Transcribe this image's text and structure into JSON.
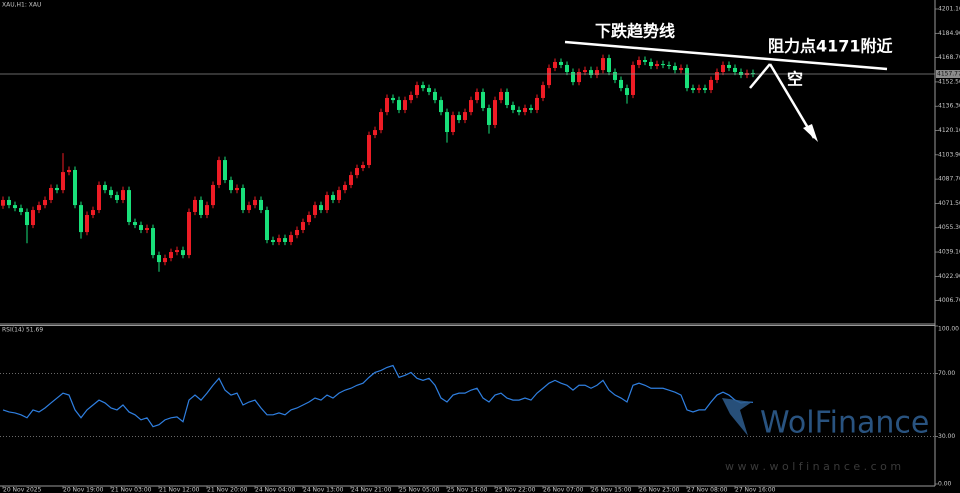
{
  "chart_data": [
    {
      "type": "candlestick",
      "title": "XAU,H1: XAU",
      "categories": [
        "20 Nov 2025",
        null,
        null,
        null,
        null,
        null,
        null,
        null,
        null,
        null,
        "20 Nov 19:00",
        null,
        null,
        null,
        null,
        null,
        null,
        null,
        "21 Nov 03:00",
        null,
        null,
        null,
        null,
        null,
        null,
        null,
        "21 Nov 12:00",
        null,
        null,
        null,
        null,
        null,
        null,
        null,
        "21 Nov 20:00",
        null,
        null,
        null,
        null,
        null,
        null,
        null,
        "24 Nov 04:00",
        null,
        null,
        null,
        null,
        null,
        null,
        null,
        "24 Nov 13:00",
        null,
        null,
        null,
        null,
        null,
        null,
        null,
        "24 Nov 21:00",
        null,
        null,
        null,
        null,
        null,
        null,
        null,
        "25 Nov 05:00",
        null,
        null,
        null,
        null,
        null,
        null,
        null,
        "25 Nov 14:00",
        null,
        null,
        null,
        null,
        null,
        null,
        null,
        "25 Nov 22:00",
        null,
        null,
        null,
        null,
        null,
        null,
        null,
        "26 Nov 07:00",
        null,
        null,
        null,
        null,
        null,
        null,
        null,
        "26 Nov 15:00",
        null,
        null,
        null,
        null,
        null,
        null,
        null,
        "26 Nov 23:00",
        null,
        null,
        null,
        null,
        null,
        null,
        null,
        "27 Nov 08:00",
        null,
        null,
        null,
        null,
        null,
        null,
        null,
        "27 Nov 16:00",
        null,
        null,
        null
      ],
      "open": [
        4070.0,
        4073.8,
        4070.4,
        4068.4,
        4065.8,
        4057.1,
        4067.1,
        4070.4,
        4073.8,
        4081.8,
        4080.4,
        4092.4,
        4093.8,
        4070.4,
        4052.4,
        4063.8,
        4067.1,
        4083.8,
        4080.4,
        4077.1,
        4073.8,
        4080.4,
        4059.1,
        4057.1,
        4053.8,
        4055.1,
        4037.1,
        4032.4,
        4035.1,
        4039.1,
        4040.4,
        4037.1,
        4065.8,
        4073.8,
        4063.8,
        4070.4,
        4083.8,
        4100.4,
        4087.1,
        4080.4,
        4081.8,
        4067.1,
        4070.4,
        4073.8,
        4067.1,
        4047.1,
        4045.8,
        4048.4,
        4045.8,
        4050.4,
        4053.8,
        4059.1,
        4063.8,
        4070.4,
        4067.1,
        4077.1,
        4073.8,
        4080.4,
        4083.8,
        4090.4,
        4095.1,
        4097.1,
        4117.1,
        4120.4,
        4132.4,
        4141.8,
        4140.4,
        4133.8,
        4140.4,
        4143.8,
        4150.4,
        4148.4,
        4145.8,
        4140.4,
        4132.4,
        4119.1,
        4130.4,
        4127.1,
        4132.4,
        4140.4,
        4145.8,
        4135.1,
        4123.8,
        4140.4,
        4145.8,
        4137.1,
        4133.8,
        4132.4,
        4135.1,
        4133.8,
        4141.8,
        4150.4,
        4161.8,
        4165.8,
        4163.8,
        4159.1,
        4152.4,
        4159.1,
        4160.4,
        4157.1,
        4160.4,
        4168.4,
        4159.1,
        4153.8,
        4148.4,
        4143.8,
        4163.8,
        4167.1,
        4165.8,
        4163.1,
        4164.4,
        4163.8,
        4163.1,
        4160.4,
        4161.8,
        4148.4,
        4147.1,
        4148.4,
        4147.1,
        4153.8,
        4159.1,
        4163.8,
        4161.8,
        4159.1,
        4157.1,
        4158.4
      ],
      "high": [
        4076.1,
        4076.1,
        4072.7,
        4070.7,
        4068.1,
        4069.4,
        4072.7,
        4076.1,
        4084.1,
        4084.1,
        4105.0,
        4096.1,
        4096.1,
        4072.7,
        4066.1,
        4069.4,
        4086.1,
        4086.1,
        4082.7,
        4079.4,
        4082.7,
        4082.7,
        4061.4,
        4059.4,
        4057.4,
        4057.4,
        4039.4,
        4037.4,
        4041.4,
        4042.7,
        4042.7,
        4068.1,
        4076.1,
        4076.1,
        4072.7,
        4086.1,
        4102.7,
        4102.7,
        4089.4,
        4084.1,
        4084.1,
        4072.7,
        4076.1,
        4076.1,
        4069.4,
        4049.4,
        4050.7,
        4050.7,
        4052.7,
        4056.1,
        4061.4,
        4066.1,
        4072.7,
        4072.7,
        4079.4,
        4079.4,
        4082.7,
        4086.1,
        4092.7,
        4097.4,
        4099.4,
        4119.4,
        4122.7,
        4134.7,
        4144.1,
        4144.1,
        4142.7,
        4142.7,
        4146.1,
        4152.7,
        4152.7,
        4150.7,
        4148.1,
        4142.7,
        4134.7,
        4132.7,
        4132.7,
        4134.7,
        4142.7,
        4148.1,
        4148.1,
        4137.4,
        4142.7,
        4148.1,
        4148.1,
        4139.4,
        4136.1,
        4137.4,
        4137.4,
        4144.1,
        4152.7,
        4164.1,
        4168.1,
        4168.1,
        4166.1,
        4161.4,
        4161.4,
        4162.7,
        4162.7,
        4162.7,
        4170.7,
        4170.7,
        4161.4,
        4156.1,
        4150.7,
        4166.1,
        4169.4,
        4169.4,
        4168.1,
        4166.7,
        4166.7,
        4166.1,
        4165.4,
        4164.1,
        4164.1,
        4150.7,
        4150.7,
        4150.7,
        4156.1,
        4161.4,
        4166.1,
        4166.1,
        4164.1,
        4161.4,
        4160.7,
        4160.7
      ],
      "low": [
        4067.9,
        4068.3,
        4066.3,
        4063.7,
        4045.0,
        4055.0,
        4065.0,
        4068.3,
        4071.7,
        4078.3,
        4078.3,
        4090.3,
        4068.3,
        4048.0,
        4050.3,
        4061.7,
        4065.0,
        4078.3,
        4075.0,
        4071.7,
        4071.7,
        4057.0,
        4055.0,
        4051.7,
        4051.7,
        4035.0,
        4026.0,
        4030.3,
        4033.0,
        4037.0,
        4035.0,
        4035.0,
        4063.7,
        4061.7,
        4061.7,
        4068.3,
        4081.7,
        4085.0,
        4078.3,
        4078.3,
        4065.0,
        4065.0,
        4068.3,
        4065.0,
        4045.0,
        4043.7,
        4043.7,
        4043.7,
        4043.7,
        4048.3,
        4051.7,
        4057.0,
        4061.7,
        4065.0,
        4065.0,
        4071.7,
        4071.7,
        4078.3,
        4081.7,
        4088.3,
        4093.0,
        4095.0,
        4115.0,
        4118.3,
        4130.3,
        4138.3,
        4131.7,
        4131.7,
        4138.3,
        4141.7,
        4146.3,
        4143.7,
        4138.3,
        4130.3,
        4112.0,
        4117.0,
        4125.0,
        4125.0,
        4130.3,
        4138.3,
        4133.0,
        4118.0,
        4121.7,
        4138.3,
        4135.0,
        4131.7,
        4130.3,
        4130.3,
        4131.7,
        4131.7,
        4139.7,
        4148.3,
        4159.7,
        4161.7,
        4157.0,
        4150.3,
        4150.3,
        4157.0,
        4155.0,
        4155.0,
        4158.3,
        4157.0,
        4151.7,
        4146.3,
        4138.0,
        4141.7,
        4161.7,
        4163.7,
        4161.0,
        4161.0,
        4161.7,
        4161.0,
        4158.3,
        4158.3,
        4146.3,
        4145.0,
        4145.0,
        4145.0,
        4145.0,
        4151.7,
        4157.0,
        4159.7,
        4157.0,
        4155.0,
        4155.0,
        4155.7
      ],
      "close": [
        4073.8,
        4070.4,
        4068.4,
        4065.8,
        4057.1,
        4067.1,
        4070.4,
        4073.8,
        4081.8,
        4080.4,
        4092.4,
        4093.8,
        4070.4,
        4052.4,
        4063.8,
        4067.1,
        4083.8,
        4080.4,
        4077.1,
        4073.8,
        4080.4,
        4059.1,
        4057.1,
        4053.8,
        4055.1,
        4037.1,
        4032.4,
        4035.1,
        4039.1,
        4040.4,
        4037.1,
        4065.8,
        4073.8,
        4063.8,
        4070.4,
        4083.8,
        4100.4,
        4087.1,
        4080.4,
        4081.8,
        4067.1,
        4070.4,
        4073.8,
        4067.1,
        4047.1,
        4045.8,
        4048.4,
        4045.8,
        4050.4,
        4053.8,
        4059.1,
        4063.8,
        4070.4,
        4067.1,
        4077.1,
        4073.8,
        4080.4,
        4083.8,
        4090.4,
        4095.1,
        4097.1,
        4117.1,
        4120.4,
        4132.4,
        4141.8,
        4140.4,
        4133.8,
        4140.4,
        4143.8,
        4150.4,
        4148.4,
        4145.8,
        4140.4,
        4132.4,
        4119.1,
        4130.4,
        4127.1,
        4132.4,
        4140.4,
        4145.8,
        4135.1,
        4123.8,
        4140.4,
        4145.8,
        4137.1,
        4133.8,
        4132.4,
        4135.1,
        4133.8,
        4141.8,
        4150.4,
        4161.8,
        4165.8,
        4163.8,
        4159.1,
        4152.4,
        4159.1,
        4160.4,
        4157.1,
        4160.4,
        4168.4,
        4159.1,
        4153.8,
        4148.4,
        4143.8,
        4163.8,
        4167.1,
        4165.8,
        4163.1,
        4164.4,
        4163.8,
        4163.1,
        4160.4,
        4161.8,
        4148.4,
        4147.1,
        4148.4,
        4147.1,
        4153.8,
        4159.1,
        4163.8,
        4161.8,
        4159.1,
        4157.1,
        4158.4,
        4157.8
      ],
      "up_color": "#ee1c25",
      "down_color": "#19e07a",
      "ylim": [
        3991.8,
        4207.1
      ],
      "yticks": [
        {
          "value": 4201.1,
          "label": "4201.10"
        },
        {
          "value": 4184.9,
          "label": "4184.90"
        },
        {
          "value": 4168.7,
          "label": "4168.70"
        },
        {
          "value": 4152.5,
          "label": "4152.50"
        },
        {
          "value": 4136.3,
          "label": "4136.30"
        },
        {
          "value": 4120.1,
          "label": "4120.10"
        },
        {
          "value": 4103.9,
          "label": "4103.90"
        },
        {
          "value": 4087.7,
          "label": "4087.70"
        },
        {
          "value": 4071.5,
          "label": "4071.50"
        },
        {
          "value": 4055.3,
          "label": "4055.30"
        },
        {
          "value": 4039.1,
          "label": "4039.10"
        },
        {
          "value": 4022.9,
          "label": "4022.90"
        },
        {
          "value": 4006.7,
          "label": "4006.70"
        }
      ],
      "current_price": 4157.77,
      "annotations": [
        "下跌趋势线",
        "阻力点4171附近",
        "空"
      ]
    },
    {
      "type": "line",
      "title": "RSI(14) 51.69",
      "series": [
        {
          "name": "RSI(14)",
          "color": "#2f7fe0",
          "values": [
            46.9,
            45.6,
            45.0,
            43.8,
            41.9,
            46.9,
            45.6,
            48.1,
            51.3,
            54.4,
            57.5,
            56.3,
            46.9,
            41.9,
            46.9,
            50.0,
            53.1,
            51.3,
            48.1,
            46.9,
            50.0,
            45.6,
            43.8,
            40.6,
            41.9,
            36.3,
            37.5,
            40.6,
            41.9,
            42.5,
            39.4,
            53.1,
            56.3,
            53.1,
            57.5,
            62.5,
            66.9,
            59.4,
            56.3,
            57.5,
            50.0,
            51.9,
            53.1,
            48.1,
            43.8,
            43.8,
            45.0,
            43.8,
            46.9,
            48.1,
            50.0,
            51.9,
            54.4,
            53.1,
            56.3,
            54.4,
            57.5,
            59.4,
            60.6,
            62.5,
            63.8,
            67.5,
            70.6,
            71.9,
            73.8,
            75.0,
            67.5,
            68.8,
            70.6,
            66.9,
            65.6,
            66.9,
            62.5,
            54.4,
            51.9,
            56.3,
            57.5,
            57.5,
            59.4,
            60.6,
            54.4,
            51.9,
            56.3,
            57.5,
            54.4,
            53.1,
            53.1,
            54.4,
            53.1,
            57.5,
            60.6,
            63.8,
            65.6,
            63.8,
            62.5,
            59.4,
            62.5,
            62.5,
            60.6,
            62.5,
            65.6,
            59.4,
            56.3,
            54.4,
            51.9,
            62.5,
            63.8,
            62.5,
            60.6,
            60.6,
            60.6,
            59.4,
            58.1,
            56.3,
            46.9,
            45.6,
            46.9,
            46.9,
            51.9,
            56.3,
            58.1,
            56.3,
            53.1,
            51.3,
            51.9,
            51.69
          ]
        }
      ],
      "ylim": [
        0,
        100
      ],
      "yticks": [
        {
          "value": 100,
          "label": "100.00"
        },
        {
          "value": 70,
          "label": "70.00"
        },
        {
          "value": 30,
          "label": "30.00"
        },
        {
          "value": 0,
          "label": "0.00"
        }
      ]
    }
  ],
  "watermark": {
    "brand": "WolFinance",
    "url": "w w w . w o l f i n a n c e . c o m"
  }
}
